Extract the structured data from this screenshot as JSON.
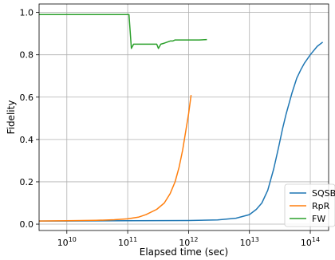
{
  "chart_data": {
    "type": "line",
    "title": "",
    "xlabel": "Elapsed time (sec)",
    "ylabel": "Fidelity",
    "xscale": "log",
    "xlim": [
      3500000000.0,
      200000000000000.0
    ],
    "ylim": [
      -0.03,
      1.04
    ],
    "grid": true,
    "legend_position": "lower-right",
    "xticks": [
      {
        "value": 10000000000.0,
        "base": "10",
        "exp": "10"
      },
      {
        "value": 100000000000.0,
        "base": "10",
        "exp": "11"
      },
      {
        "value": 1000000000000.0,
        "base": "10",
        "exp": "12"
      },
      {
        "value": 10000000000000.0,
        "base": "10",
        "exp": "13"
      },
      {
        "value": 100000000000000.0,
        "base": "10",
        "exp": "14"
      }
    ],
    "yticks": [
      {
        "value": 0.0,
        "label": "0.0"
      },
      {
        "value": 0.2,
        "label": "0.2"
      },
      {
        "value": 0.4,
        "label": "0.4"
      },
      {
        "value": 0.6,
        "label": "0.6"
      },
      {
        "value": 0.8,
        "label": "0.8"
      },
      {
        "value": 1.0,
        "label": "1.0"
      }
    ],
    "series": [
      {
        "name": "SQSB",
        "color": "#1f77b4",
        "x": [
          3500000000.0,
          10000000000.0,
          100000000000.0,
          1000000000000.0,
          3000000000000.0,
          6000000000000.0,
          10000000000000.0,
          13000000000000.0,
          16000000000000.0,
          20000000000000.0,
          25000000000000.0,
          30000000000000.0,
          35000000000000.0,
          40000000000000.0,
          50000000000000.0,
          60000000000000.0,
          70000000000000.0,
          80000000000000.0,
          100000000000000.0,
          130000000000000.0,
          160000000000000.0
        ],
        "y": [
          0.015,
          0.015,
          0.016,
          0.017,
          0.02,
          0.028,
          0.045,
          0.07,
          0.1,
          0.16,
          0.26,
          0.36,
          0.45,
          0.52,
          0.62,
          0.69,
          0.73,
          0.76,
          0.8,
          0.84,
          0.86
        ]
      },
      {
        "name": "RpR",
        "color": "#ff7f0e",
        "x": [
          3500000000.0,
          10000000000.0,
          30000000000.0,
          60000000000.0,
          100000000000.0,
          150000000000.0,
          200000000000.0,
          300000000000.0,
          400000000000.0,
          500000000000.0,
          600000000000.0,
          700000000000.0,
          800000000000.0,
          900000000000.0,
          1000000000000.0,
          1100000000000.0
        ],
        "y": [
          0.015,
          0.016,
          0.018,
          0.021,
          0.025,
          0.033,
          0.045,
          0.07,
          0.1,
          0.145,
          0.2,
          0.27,
          0.35,
          0.44,
          0.52,
          0.61
        ]
      },
      {
        "name": "FW",
        "color": "#2ca02c",
        "x": [
          3500000000.0,
          10000000000.0,
          50000000000.0,
          105000000000.0,
          115000000000.0,
          125000000000.0,
          200000000000.0,
          300000000000.0,
          320000000000.0,
          350000000000.0,
          400000000000.0,
          500000000000.0,
          550000000000.0,
          600000000000.0,
          800000000000.0,
          1000000000000.0,
          1500000000000.0,
          2000000000000.0
        ],
        "y": [
          0.99,
          0.99,
          0.99,
          0.99,
          0.83,
          0.85,
          0.85,
          0.85,
          0.83,
          0.85,
          0.855,
          0.865,
          0.865,
          0.87,
          0.87,
          0.87,
          0.87,
          0.872
        ]
      }
    ]
  }
}
